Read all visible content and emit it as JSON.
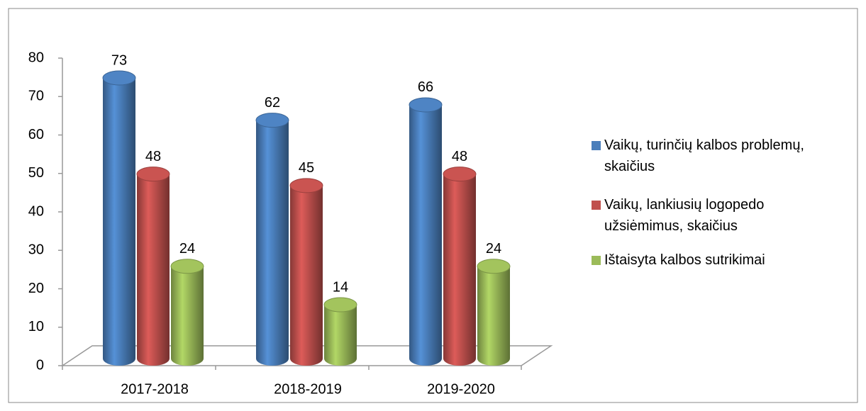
{
  "chart_data": {
    "type": "bar",
    "categories": [
      "2017-2018",
      "2018-2019",
      "2019-2020"
    ],
    "series": [
      {
        "name": "Vaikų, turinčių kalbos problemų, skaičius",
        "color": "#4a7ebb",
        "values": [
          73,
          62,
          66
        ]
      },
      {
        "name": "Vaikų, lankiusių logopedo užsiėmimus, skaičius",
        "color": "#c0504d",
        "values": [
          48,
          45,
          48
        ]
      },
      {
        "name": "Ištaisyta kalbos sutrikimai",
        "color": "#9bbb59",
        "values": [
          24,
          14,
          24
        ]
      }
    ],
    "ylim": [
      0,
      80
    ],
    "yticks": [
      0,
      10,
      20,
      30,
      40,
      50,
      60,
      70,
      80
    ],
    "grid": false,
    "legend": "right"
  }
}
